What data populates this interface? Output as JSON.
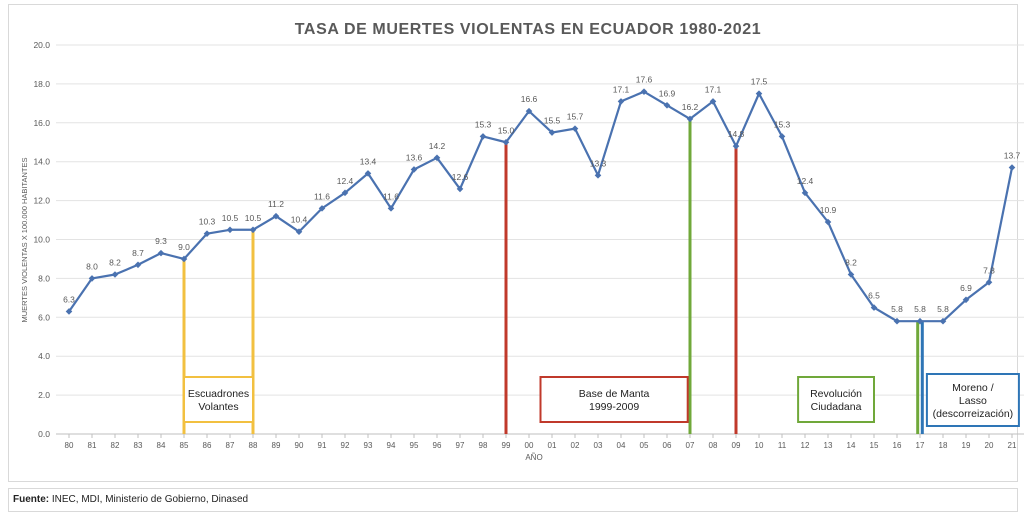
{
  "chart_data": {
    "type": "line",
    "title": "TASA DE MUERTES VIOLENTAS EN ECUADOR 1980-2021",
    "xlabel": "AÑO",
    "ylabel": "MUERTES VIOLENTAS X 100.000 HABITANTES",
    "ylim": [
      0,
      20
    ],
    "yticks": [
      "0.0",
      "2.0",
      "4.0",
      "6.0",
      "8.0",
      "10.0",
      "12.0",
      "14.0",
      "16.0",
      "18.0",
      "20.0"
    ],
    "categories": [
      "80",
      "81",
      "82",
      "83",
      "84",
      "85",
      "86",
      "87",
      "88",
      "89",
      "90",
      "91",
      "92",
      "93",
      "94",
      "95",
      "96",
      "97",
      "98",
      "99",
      "00",
      "01",
      "02",
      "03",
      "04",
      "05",
      "06",
      "07",
      "08",
      "09",
      "10",
      "11",
      "12",
      "13",
      "14",
      "15",
      "16",
      "17",
      "18",
      "19",
      "20",
      "21"
    ],
    "series": [
      {
        "color": "#4a72b0",
        "values": [
          6.3,
          8.0,
          8.2,
          8.7,
          9.3,
          9.0,
          10.3,
          10.5,
          10.5,
          11.2,
          10.4,
          11.6,
          12.4,
          13.4,
          11.6,
          13.6,
          14.2,
          12.6,
          15.3,
          15.0,
          16.6,
          15.5,
          15.7,
          13.3,
          17.1,
          17.6,
          16.9,
          16.2,
          17.1,
          14.8,
          17.5,
          15.3,
          12.4,
          10.9,
          8.2,
          6.5,
          5.8,
          5.8,
          5.8,
          6.9,
          7.8,
          13.7
        ],
        "labels": [
          "6.3",
          "8.0",
          "8.2",
          "8.7",
          "9.3",
          "9.0",
          "10.3",
          "10.5",
          "10.5",
          "11.2",
          "10.4",
          "11.6",
          "12.4",
          "13.4",
          "11.6",
          "13.6",
          "14.2",
          "12.6",
          "15.3",
          "15.0",
          "16.6",
          "15.5",
          "15.7",
          "13.3",
          "17.1",
          "17.6",
          "16.9",
          "16.2",
          "17.1",
          "14.8",
          "17.5",
          "15.3",
          "12.4",
          "10.9",
          "8.2",
          "6.5",
          "5.8",
          "5.8",
          "5.8",
          "6.9",
          "7.8",
          "13.7"
        ]
      }
    ],
    "grid": true,
    "legend": "none",
    "markers": [
      {
        "x": 5,
        "y": 9.0,
        "color": "#f2c040"
      },
      {
        "x": 8,
        "y": 10.5,
        "color": "#f2c040"
      },
      {
        "x": 19,
        "y": 15.0,
        "color": "#c0392b"
      },
      {
        "x": 27,
        "y": 16.2,
        "color": "#70a83a"
      },
      {
        "x": 29,
        "y": 14.8,
        "color": "#c0392b"
      },
      {
        "x": 36.9,
        "y": 5.8,
        "color": "#70a83a"
      },
      {
        "x": 37.1,
        "y": 5.8,
        "color": "#2e75b6"
      }
    ],
    "annotations": [
      {
        "lines": [
          "Escuadrones",
          "Volantes"
        ],
        "color": "#f2c040",
        "x_from": 5,
        "x_to": 8
      },
      {
        "lines": [
          "Base de Manta",
          "1999-2009"
        ],
        "color": "#c0392b",
        "x_from": 20.5,
        "x_to": 26.9
      },
      {
        "lines": [
          "Revolución",
          "Ciudadana"
        ],
        "color": "#70a83a",
        "x_from": 31.7,
        "x_to": 35.0
      },
      {
        "lines": [
          "Moreno /",
          "Lasso",
          "(descorreización)"
        ],
        "color": "#2e75b6",
        "x_from": 37.3,
        "x_to": 41.3
      }
    ]
  },
  "footer": {
    "source_label": "Fuente:",
    "source_text": " INEC, MDI, Ministerio de Gobierno, Dinased"
  }
}
